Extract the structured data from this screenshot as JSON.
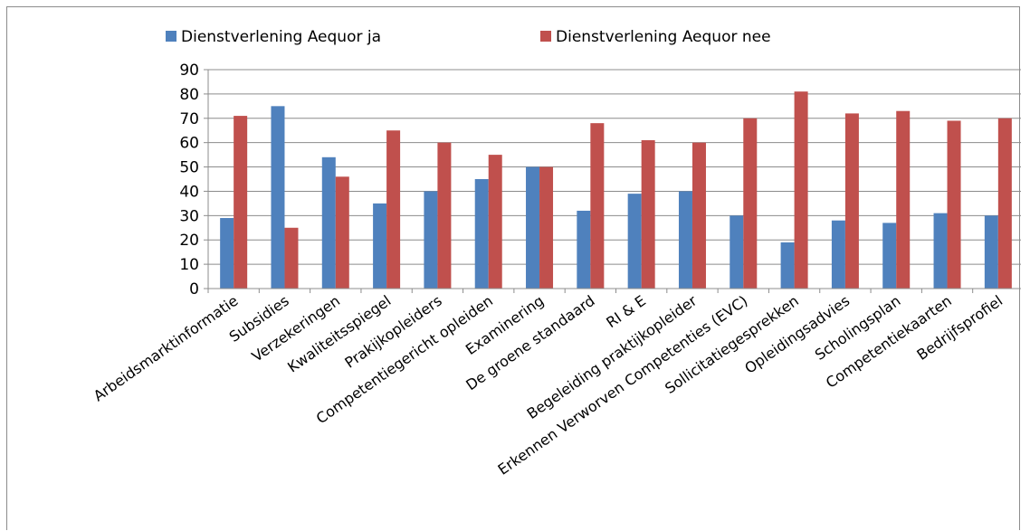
{
  "chart_data": {
    "type": "bar",
    "title": "",
    "xlabel": "",
    "ylabel": "",
    "ylim": [
      0,
      90
    ],
    "yticks": [
      0,
      10,
      20,
      30,
      40,
      50,
      60,
      70,
      80,
      90
    ],
    "grid": true,
    "legend": "top",
    "categories": [
      "Arbeidsmarktinformatie",
      "Subsidies",
      "Verzekeringen",
      "Kwaliteitsspiegel",
      "Prakijkopleiders",
      "Competentiegericht opleiden",
      "Examinering",
      "De groene standaard",
      "RI & E",
      "Begeleiding praktijkopleider",
      "Erkennen Verworven Competenties (EVC)",
      "Sollicitatiegesprekken",
      "Opleidingsadvies",
      "Scholingsplan",
      "Competentiekaarten",
      "Bedrijfsprofiel"
    ],
    "series": [
      {
        "name": "Dienstverlening Aequor ja",
        "color": "#4f81bd",
        "values": [
          29,
          75,
          54,
          35,
          40,
          45,
          50,
          32,
          39,
          40,
          30,
          19,
          28,
          27,
          31,
          30
        ]
      },
      {
        "name": "Dienstverlening Aequor nee",
        "color": "#c0504d",
        "values": [
          71,
          25,
          46,
          65,
          60,
          55,
          50,
          68,
          61,
          60,
          70,
          81,
          72,
          73,
          69,
          70
        ]
      }
    ]
  }
}
